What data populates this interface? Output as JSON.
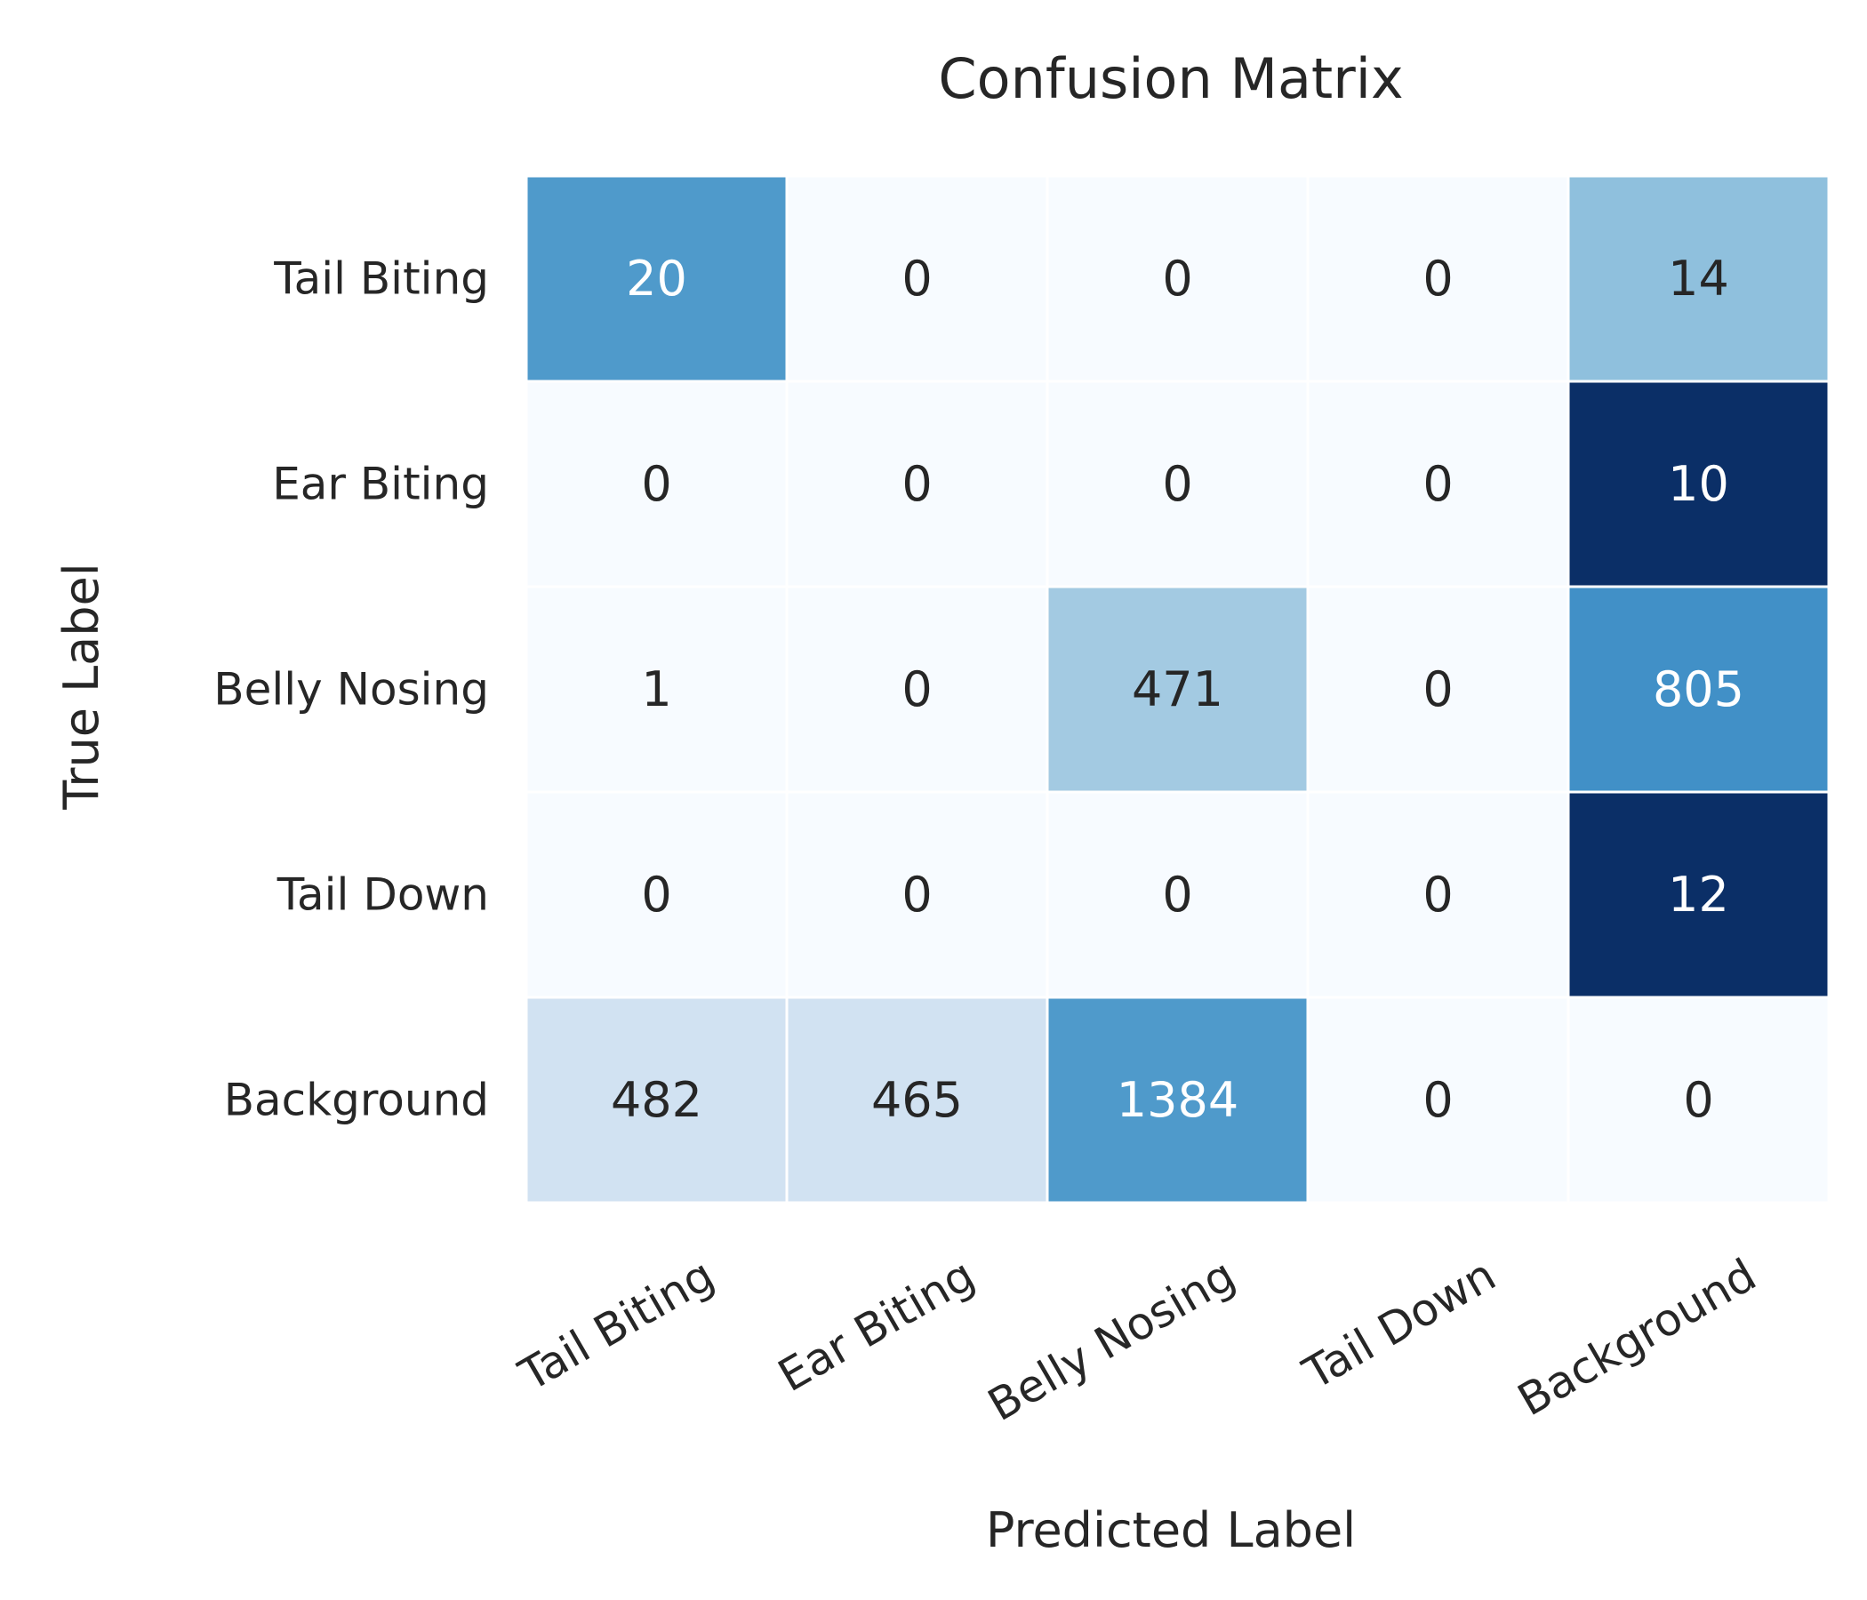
{
  "chart_data": {
    "type": "heatmap",
    "title": "Confusion Matrix",
    "xlabel": "Predicted Label",
    "ylabel": "True Label",
    "x_categories": [
      "Tail Biting",
      "Ear Biting",
      "Belly Nosing",
      "Tail Down",
      "Background"
    ],
    "y_categories": [
      "Tail Biting",
      "Ear Biting",
      "Belly Nosing",
      "Tail Down",
      "Background"
    ],
    "values": [
      [
        20,
        0,
        0,
        0,
        14
      ],
      [
        0,
        0,
        0,
        0,
        10
      ],
      [
        1,
        0,
        471,
        0,
        805
      ],
      [
        0,
        0,
        0,
        0,
        12
      ],
      [
        482,
        465,
        1384,
        0,
        0
      ]
    ],
    "colormap": "Blues",
    "colorbar": false,
    "grid": false,
    "cell_colors": [
      [
        "#4f9acb",
        "#f7fbff",
        "#f7fbff",
        "#f7fbff",
        "#8fc0dd"
      ],
      [
        "#f7fbff",
        "#f7fbff",
        "#f7fbff",
        "#f7fbff",
        "#0b2f67"
      ],
      [
        "#f7fbff",
        "#f7fbff",
        "#a3cae2",
        "#f7fbff",
        "#4190c7"
      ],
      [
        "#f7fbff",
        "#f7fbff",
        "#f7fbff",
        "#f7fbff",
        "#0b2f67"
      ],
      [
        "#d1e2f2",
        "#d1e2f2",
        "#4f9acb",
        "#f7fbff",
        "#f7fbff"
      ]
    ],
    "text_colors": [
      [
        "#ffffff",
        "#262626",
        "#262626",
        "#262626",
        "#262626"
      ],
      [
        "#262626",
        "#262626",
        "#262626",
        "#262626",
        "#ffffff"
      ],
      [
        "#262626",
        "#262626",
        "#262626",
        "#262626",
        "#ffffff"
      ],
      [
        "#262626",
        "#262626",
        "#262626",
        "#262626",
        "#ffffff"
      ],
      [
        "#262626",
        "#262626",
        "#ffffff",
        "#262626",
        "#262626"
      ]
    ]
  }
}
